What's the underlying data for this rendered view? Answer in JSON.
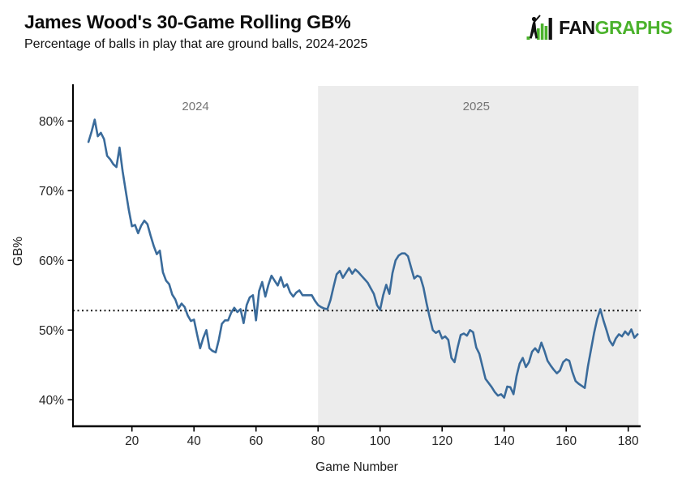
{
  "header": {
    "title": "James Wood's 30-Game Rolling GB%",
    "subtitle": "Percentage of balls in play that are ground balls, 2024-2025"
  },
  "logo": {
    "fan": "FAN",
    "graphs": "GRAPHS"
  },
  "colors": {
    "line": "#3a6b9b",
    "shaded_region": "#ececec",
    "logo_green": "#4bb22c",
    "reference_line": "#141414",
    "year_label": "#757575",
    "axis_text": "#262626",
    "spine": "#000000"
  },
  "chart_data": {
    "type": "line",
    "title": "James Wood's 30-Game Rolling GB%",
    "subtitle": "Percentage of balls in play that are ground balls, 2024-2025",
    "xlabel": "Game Number",
    "ylabel": "GB%",
    "xlim": [
      1,
      184
    ],
    "ylim": [
      36.2,
      85.2
    ],
    "grid": false,
    "legend": "none",
    "x_ticks": [
      20,
      40,
      60,
      80,
      100,
      120,
      140,
      160,
      180
    ],
    "x_tick_labels": [
      "20",
      "40",
      "60",
      "80",
      "100",
      "120",
      "140",
      "160",
      "180"
    ],
    "y_ticks": [
      40,
      50,
      60,
      70,
      80
    ],
    "y_tick_labels": [
      "40%",
      "50%",
      "60%",
      "70%",
      "80%"
    ],
    "reference_line": {
      "y": 52.8,
      "style": "dotted"
    },
    "regions": [
      {
        "label": "2024",
        "x_start": 1,
        "x_end": 80,
        "shaded": false,
        "label_x": 40.5
      },
      {
        "label": "2025",
        "x_start": 80,
        "x_end": 183.3,
        "shaded": true,
        "label_x": 131
      }
    ],
    "series": [
      {
        "name": "30-game rolling GB%",
        "color": "#3a6b9b",
        "points": [
          [
            6,
            77.0
          ],
          [
            7,
            78.5
          ],
          [
            8,
            80.2
          ],
          [
            9,
            77.8
          ],
          [
            10,
            78.3
          ],
          [
            11,
            77.4
          ],
          [
            12,
            75.0
          ],
          [
            13,
            74.5
          ],
          [
            14,
            73.8
          ],
          [
            15,
            73.4
          ],
          [
            16,
            76.2
          ],
          [
            17,
            72.8
          ],
          [
            18,
            70.0
          ],
          [
            19,
            67.2
          ],
          [
            20,
            64.9
          ],
          [
            21,
            65.1
          ],
          [
            22,
            63.9
          ],
          [
            23,
            65.0
          ],
          [
            24,
            65.7
          ],
          [
            25,
            65.2
          ],
          [
            26,
            63.6
          ],
          [
            27,
            62.1
          ],
          [
            28,
            60.9
          ],
          [
            29,
            61.4
          ],
          [
            30,
            58.3
          ],
          [
            31,
            57.1
          ],
          [
            32,
            56.6
          ],
          [
            33,
            55.1
          ],
          [
            34,
            54.4
          ],
          [
            35,
            53.1
          ],
          [
            36,
            53.8
          ],
          [
            37,
            53.3
          ],
          [
            38,
            52.1
          ],
          [
            39,
            51.3
          ],
          [
            40,
            51.5
          ],
          [
            41,
            49.4
          ],
          [
            42,
            47.4
          ],
          [
            43,
            48.9
          ],
          [
            44,
            50.0
          ],
          [
            45,
            47.4
          ],
          [
            46,
            47.0
          ],
          [
            47,
            46.8
          ],
          [
            48,
            48.6
          ],
          [
            49,
            50.9
          ],
          [
            50,
            51.4
          ],
          [
            51,
            51.4
          ],
          [
            52,
            52.5
          ],
          [
            53,
            53.2
          ],
          [
            54,
            52.6
          ],
          [
            55,
            53.0
          ],
          [
            56,
            51.0
          ],
          [
            57,
            53.6
          ],
          [
            58,
            54.7
          ],
          [
            59,
            55.0
          ],
          [
            60,
            51.4
          ],
          [
            61,
            55.6
          ],
          [
            62,
            56.9
          ],
          [
            63,
            54.8
          ],
          [
            64,
            56.5
          ],
          [
            65,
            57.8
          ],
          [
            66,
            57.1
          ],
          [
            67,
            56.4
          ],
          [
            68,
            57.6
          ],
          [
            69,
            56.2
          ],
          [
            70,
            56.6
          ],
          [
            71,
            55.4
          ],
          [
            72,
            54.8
          ],
          [
            73,
            55.4
          ],
          [
            74,
            55.7
          ],
          [
            75,
            55.0
          ],
          [
            76,
            55.0
          ],
          [
            77,
            55.0
          ],
          [
            78,
            55.0
          ],
          [
            79,
            54.2
          ],
          [
            80,
            53.6
          ],
          [
            81,
            53.3
          ],
          [
            82,
            53.1
          ],
          [
            83,
            53.0
          ],
          [
            84,
            54.3
          ],
          [
            85,
            56.2
          ],
          [
            86,
            58.0
          ],
          [
            87,
            58.5
          ],
          [
            88,
            57.5
          ],
          [
            89,
            58.2
          ],
          [
            90,
            58.9
          ],
          [
            91,
            58.1
          ],
          [
            92,
            58.7
          ],
          [
            93,
            58.3
          ],
          [
            94,
            57.8
          ],
          [
            95,
            57.3
          ],
          [
            96,
            56.8
          ],
          [
            97,
            56.0
          ],
          [
            98,
            55.2
          ],
          [
            99,
            53.6
          ],
          [
            100,
            52.9
          ],
          [
            101,
            55.0
          ],
          [
            102,
            56.5
          ],
          [
            103,
            55.2
          ],
          [
            104,
            58.2
          ],
          [
            105,
            60.0
          ],
          [
            106,
            60.7
          ],
          [
            107,
            61.0
          ],
          [
            108,
            61.0
          ],
          [
            109,
            60.6
          ],
          [
            110,
            59.0
          ],
          [
            111,
            57.4
          ],
          [
            112,
            57.8
          ],
          [
            113,
            57.6
          ],
          [
            114,
            56.1
          ],
          [
            115,
            53.8
          ],
          [
            116,
            51.8
          ],
          [
            117,
            50.0
          ],
          [
            118,
            49.6
          ],
          [
            119,
            49.9
          ],
          [
            120,
            48.8
          ],
          [
            121,
            49.1
          ],
          [
            122,
            48.6
          ],
          [
            123,
            46.0
          ],
          [
            124,
            45.4
          ],
          [
            125,
            47.5
          ],
          [
            126,
            49.3
          ],
          [
            127,
            49.5
          ],
          [
            128,
            49.2
          ],
          [
            129,
            50.0
          ],
          [
            130,
            49.7
          ],
          [
            131,
            47.5
          ],
          [
            132,
            46.6
          ],
          [
            133,
            44.8
          ],
          [
            134,
            43.0
          ],
          [
            135,
            42.4
          ],
          [
            136,
            41.8
          ],
          [
            137,
            41.1
          ],
          [
            138,
            40.6
          ],
          [
            139,
            40.8
          ],
          [
            140,
            40.3
          ],
          [
            141,
            41.9
          ],
          [
            142,
            41.8
          ],
          [
            143,
            40.8
          ],
          [
            144,
            43.4
          ],
          [
            145,
            45.2
          ],
          [
            146,
            46.0
          ],
          [
            147,
            44.7
          ],
          [
            148,
            45.4
          ],
          [
            149,
            46.9
          ],
          [
            150,
            47.4
          ],
          [
            151,
            46.8
          ],
          [
            152,
            48.2
          ],
          [
            153,
            47.0
          ],
          [
            154,
            45.6
          ],
          [
            155,
            44.9
          ],
          [
            156,
            44.3
          ],
          [
            157,
            43.8
          ],
          [
            158,
            44.2
          ],
          [
            159,
            45.4
          ],
          [
            160,
            45.8
          ],
          [
            161,
            45.6
          ],
          [
            162,
            44.0
          ],
          [
            163,
            42.7
          ],
          [
            164,
            42.3
          ],
          [
            165,
            42.0
          ],
          [
            166,
            41.7
          ],
          [
            167,
            44.8
          ],
          [
            168,
            47.2
          ],
          [
            169,
            49.6
          ],
          [
            170,
            51.6
          ],
          [
            171,
            53.0
          ],
          [
            172,
            51.4
          ],
          [
            173,
            50.0
          ],
          [
            174,
            48.5
          ],
          [
            175,
            47.8
          ],
          [
            176,
            48.8
          ],
          [
            177,
            49.4
          ],
          [
            178,
            49.1
          ],
          [
            179,
            49.8
          ],
          [
            180,
            49.3
          ],
          [
            181,
            50.1
          ],
          [
            182,
            48.9
          ],
          [
            183,
            49.4
          ]
        ]
      }
    ]
  }
}
